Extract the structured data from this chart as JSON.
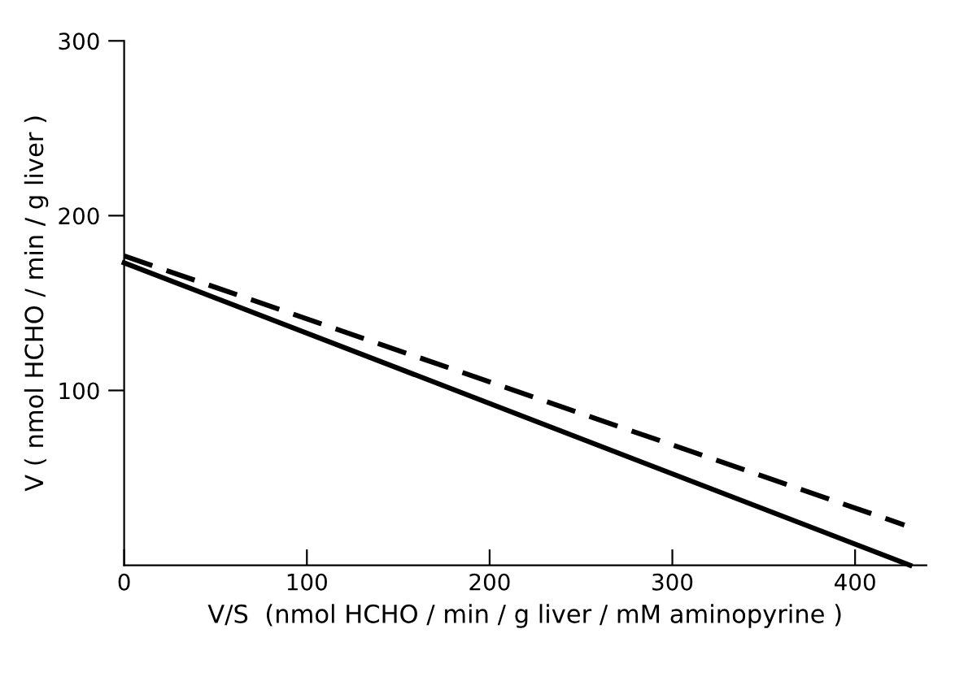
{
  "chart_data": {
    "type": "line",
    "xlabel": "V/S  (nmol HCHO / min / g liver / mM aminopyrine )",
    "ylabel": "V ( nmol HCHO / min / g liver )",
    "xlim": [
      0,
      439
    ],
    "ylim": [
      0,
      300
    ],
    "xticks": [
      0,
      100,
      200,
      300,
      400
    ],
    "yticks": [
      100,
      200,
      300
    ],
    "grid": false,
    "legend": false,
    "series": [
      {
        "color": "#000000",
        "x": [
          0,
          430
        ],
        "values": [
          173,
          0
        ],
        "line_style": "solid"
      },
      {
        "color": "#000000",
        "x": [
          0,
          427
        ],
        "values": [
          177,
          23
        ],
        "line_style": "dashed"
      }
    ]
  }
}
